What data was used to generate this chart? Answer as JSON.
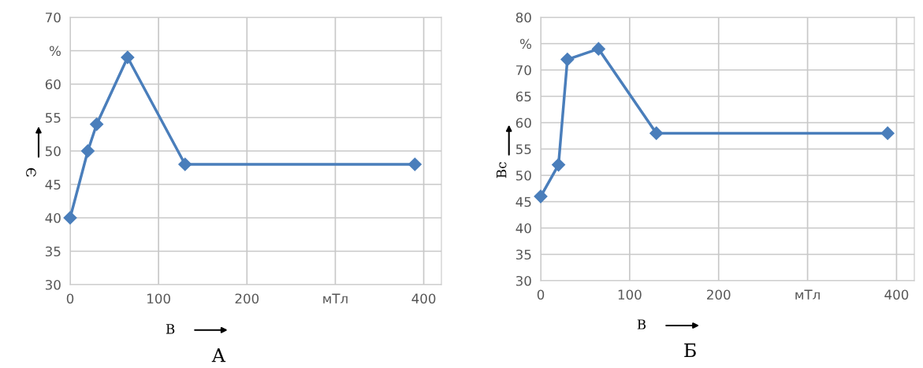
{
  "chart_data": [
    {
      "type": "line",
      "title": "А",
      "xlabel": "B",
      "ylabel": "Э",
      "x": [
        0,
        20,
        30,
        65,
        130,
        390
      ],
      "series": [
        {
          "color": "#4a7ebb",
          "values": [
            40,
            50,
            54,
            64,
            48,
            48
          ]
        }
      ],
      "xlim": [
        0,
        420
      ],
      "xticks": [
        0,
        100,
        200,
        {
          "value": 300,
          "label": "мТл"
        },
        400
      ],
      "ylim": [
        30,
        70
      ],
      "yticks": [
        30,
        35,
        40,
        45,
        50,
        55,
        60,
        {
          "value": 65,
          "label": "%"
        },
        70
      ],
      "grid": true,
      "marker": "diamond",
      "line_style": "solid"
    },
    {
      "type": "line",
      "title": "Б",
      "xlabel": "B",
      "ylabel": "Bc",
      "x": [
        0,
        20,
        30,
        65,
        130,
        390
      ],
      "series": [
        {
          "color": "#4a7ebb",
          "values": [
            46,
            52,
            72,
            74,
            58,
            58
          ]
        }
      ],
      "xlim": [
        0,
        420
      ],
      "xticks": [
        0,
        100,
        200,
        {
          "value": 300,
          "label": "мТл"
        },
        400
      ],
      "ylim": [
        30,
        80
      ],
      "yticks": [
        30,
        35,
        40,
        45,
        50,
        55,
        60,
        65,
        70,
        {
          "value": 75,
          "label": "%"
        },
        80
      ],
      "grid": true,
      "marker": "diamond",
      "line_style": "solid"
    }
  ]
}
